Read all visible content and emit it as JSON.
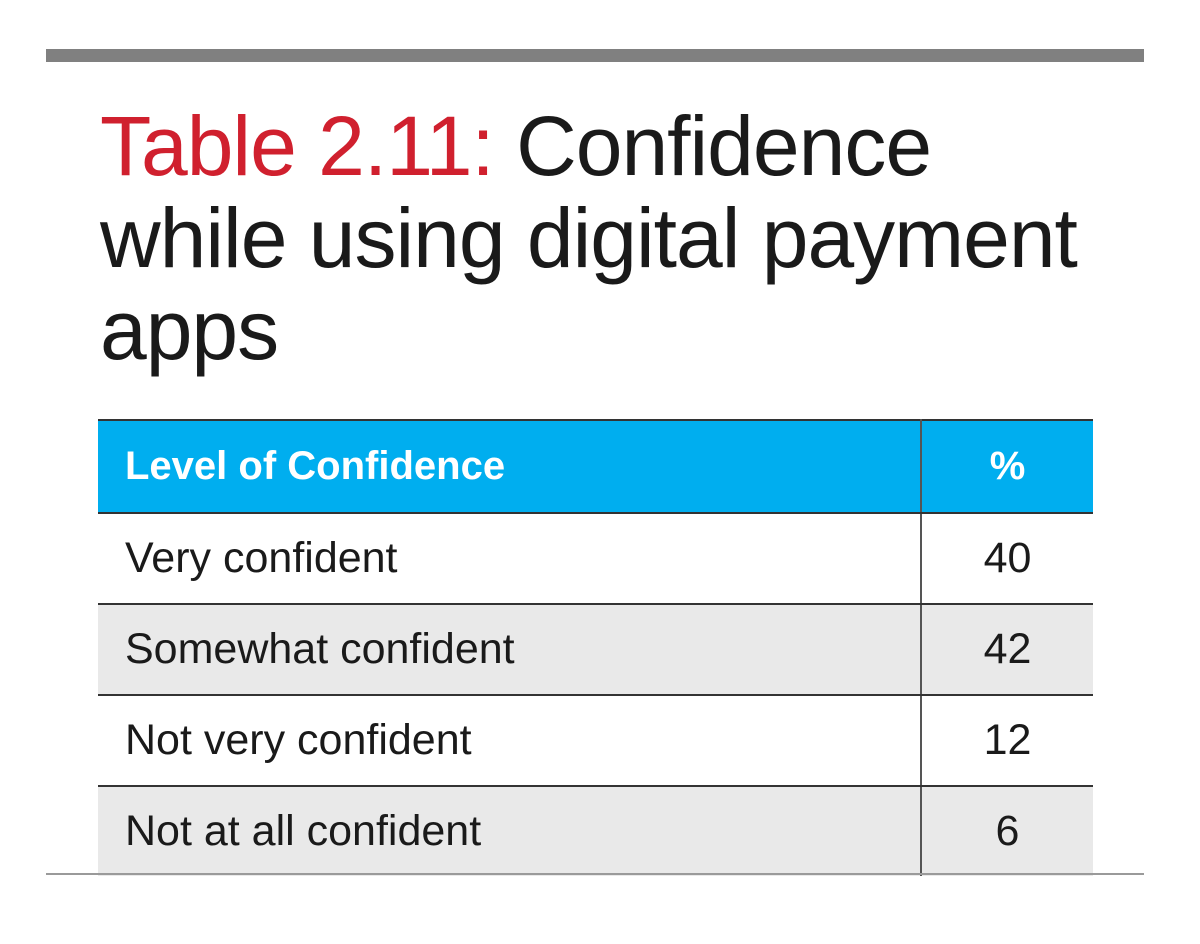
{
  "title": {
    "label": "Table 2.11:",
    "text": " Confidence while using digital payment apps"
  },
  "colors": {
    "title_label": "#d0202e",
    "header_bg": "#00aeef",
    "header_text": "#ffffff",
    "row_alt_bg": "#e9e9e9",
    "rule": "#808080"
  },
  "chart_data": {
    "type": "table",
    "title": "Table 2.11: Confidence while using digital payment apps",
    "columns": [
      "Level of Confidence",
      "%"
    ],
    "rows": [
      [
        "Very confident",
        "40"
      ],
      [
        "Somewhat confident",
        "42"
      ],
      [
        "Not very confident",
        "12"
      ],
      [
        "Not at all confident",
        "6"
      ]
    ]
  }
}
